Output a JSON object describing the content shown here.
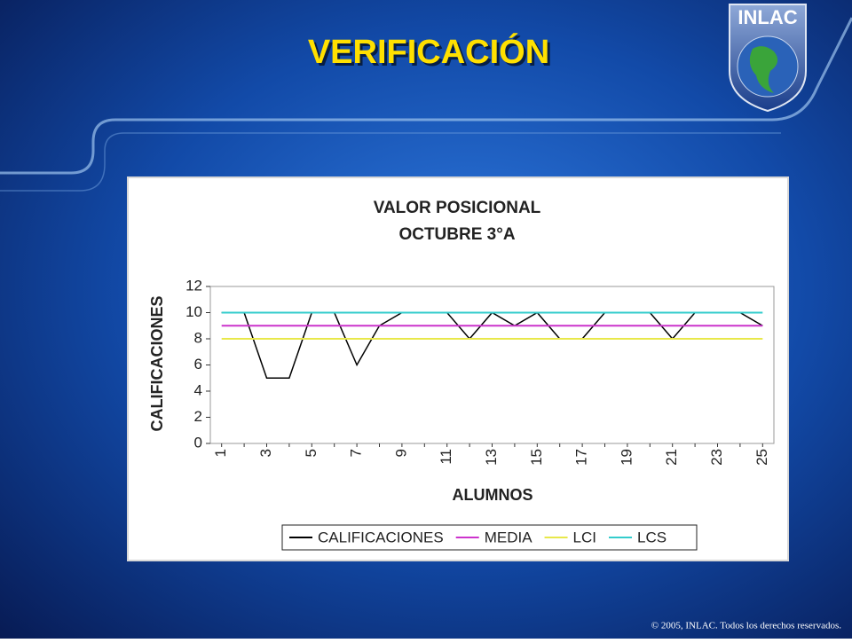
{
  "slide_title": "VERIFICACIÓN",
  "logo": "INLAC",
  "footer": "© 2005, INLAC. Todos los derechos reservados.",
  "chart_data": {
    "type": "line",
    "title": "VALOR POSICIONAL",
    "subtitle": "OCTUBRE 3°A",
    "x_label": "ALUMNOS",
    "y_label": "CALIFICACIONES",
    "categories": [
      "1",
      null,
      "3",
      null,
      "5",
      null,
      "7",
      null,
      "9",
      null,
      "11",
      null,
      "13",
      null,
      "15",
      null,
      "17",
      null,
      "19",
      null,
      "21",
      null,
      "23",
      null,
      "25"
    ],
    "series": [
      {
        "name": "CALIFICACIONES",
        "color": "#000000",
        "values": [
          10,
          10,
          5,
          5,
          10,
          10,
          6,
          9,
          10,
          10,
          10,
          8,
          10,
          9,
          10,
          8,
          8,
          10,
          10,
          10,
          8,
          10,
          10,
          10,
          9
        ]
      },
      {
        "name": "MEDIA",
        "color": "#cc33cc",
        "values": [
          9,
          9,
          9,
          9,
          9,
          9,
          9,
          9,
          9,
          9,
          9,
          9,
          9,
          9,
          9,
          9,
          9,
          9,
          9,
          9,
          9,
          9,
          9,
          9,
          9
        ]
      },
      {
        "name": "LCI",
        "color": "#e8e84a",
        "values": [
          8,
          8,
          8,
          8,
          8,
          8,
          8,
          8,
          8,
          8,
          8,
          8,
          8,
          8,
          8,
          8,
          8,
          8,
          8,
          8,
          8,
          8,
          8,
          8,
          8
        ]
      },
      {
        "name": "LCS",
        "color": "#33cccc",
        "values": [
          10,
          10,
          10,
          10,
          10,
          10,
          10,
          10,
          10,
          10,
          10,
          10,
          10,
          10,
          10,
          10,
          10,
          10,
          10,
          10,
          10,
          10,
          10,
          10,
          10
        ]
      }
    ],
    "ylim": [
      0,
      12
    ],
    "yticks": [
      0,
      2,
      4,
      6,
      8,
      10,
      12
    ],
    "legend": "bottom"
  }
}
